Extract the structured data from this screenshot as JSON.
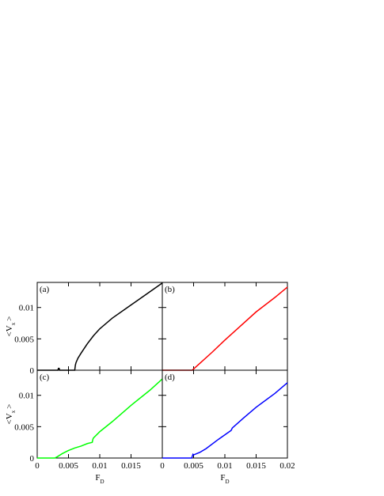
{
  "chart_data": [
    {
      "type": "line",
      "panel_label": "(a)",
      "color": "#000000",
      "x": [
        0,
        0.0033,
        0.0034,
        0.0035,
        0.0036,
        0.006,
        0.0061,
        0.0062,
        0.0065,
        0.007,
        0.008,
        0.009,
        0.01,
        0.012,
        0.015,
        0.018,
        0.02
      ],
      "values": [
        0,
        0,
        0.0003,
        0.0003,
        0,
        0,
        0.0008,
        0.0012,
        0.0019,
        0.0027,
        0.0042,
        0.0055,
        0.0066,
        0.0083,
        0.0104,
        0.0125,
        0.0139
      ],
      "xlim": [
        0,
        0.02
      ],
      "ylim": [
        0,
        0.014
      ],
      "xticks": [
        0,
        0.005,
        0.01,
        0.015
      ],
      "yticks": [
        0,
        0.005,
        0.01
      ],
      "xtick_labels": false,
      "ytick_labels": true,
      "ylabel": {
        "main": "<V",
        "sub": "x",
        "close": ">"
      }
    },
    {
      "type": "line",
      "panel_label": "(b)",
      "color": "#ff0000",
      "x": [
        0,
        0.0048,
        0.005,
        0.006,
        0.008,
        0.01,
        0.012,
        0.015,
        0.018,
        0.02
      ],
      "values": [
        0,
        0,
        0.0002,
        0.0011,
        0.0029,
        0.0048,
        0.0066,
        0.0093,
        0.0116,
        0.01325
      ],
      "xlim": [
        0,
        0.02
      ],
      "ylim": [
        0,
        0.014
      ],
      "xticks": [
        0,
        0.005,
        0.01,
        0.015,
        0.02
      ],
      "yticks": [
        0,
        0.005,
        0.01
      ],
      "xtick_labels": false,
      "ytick_labels": false
    },
    {
      "type": "line",
      "panel_label": "(c)",
      "color": "#00ff00",
      "x": [
        0,
        0.0028,
        0.0032,
        0.004,
        0.005,
        0.006,
        0.007,
        0.008,
        0.0088,
        0.0089,
        0.009,
        0.01,
        0.012,
        0.015,
        0.018,
        0.02
      ],
      "values": [
        0,
        0,
        0.0002,
        0.0007,
        0.0012,
        0.0016,
        0.0019,
        0.0023,
        0.0025,
        0.003,
        0.0032,
        0.0042,
        0.0058,
        0.0084,
        0.0108,
        0.0126
      ],
      "xlim": [
        0,
        0.02
      ],
      "ylim": [
        0,
        0.014
      ],
      "xticks": [
        0,
        0.005,
        0.01,
        0.015
      ],
      "yticks": [
        0,
        0.005,
        0.01
      ],
      "xtick_labels": true,
      "ytick_labels": true,
      "xlabel": {
        "main": "F",
        "sub": "D"
      },
      "ylabel": {
        "main": "<V",
        "sub": "x",
        "close": ">"
      }
    },
    {
      "type": "line",
      "panel_label": "(d)",
      "color": "#0000ff",
      "x": [
        0,
        0.0047,
        0.0049,
        0.005,
        0.006,
        0.007,
        0.009,
        0.011,
        0.0112,
        0.013,
        0.015,
        0.018,
        0.02
      ],
      "values": [
        0,
        0,
        0.0006,
        0.0005,
        0.0009,
        0.0015,
        0.003,
        0.0044,
        0.0048,
        0.0064,
        0.0081,
        0.0103,
        0.012
      ],
      "xlim": [
        0,
        0.02
      ],
      "ylim": [
        0,
        0.014
      ],
      "xticks": [
        0,
        0.005,
        0.01,
        0.015,
        0.02
      ],
      "yticks": [
        0,
        0.005,
        0.01
      ],
      "xtick_labels": true,
      "ytick_labels": false,
      "xlabel": {
        "main": "F",
        "sub": "D"
      }
    }
  ]
}
